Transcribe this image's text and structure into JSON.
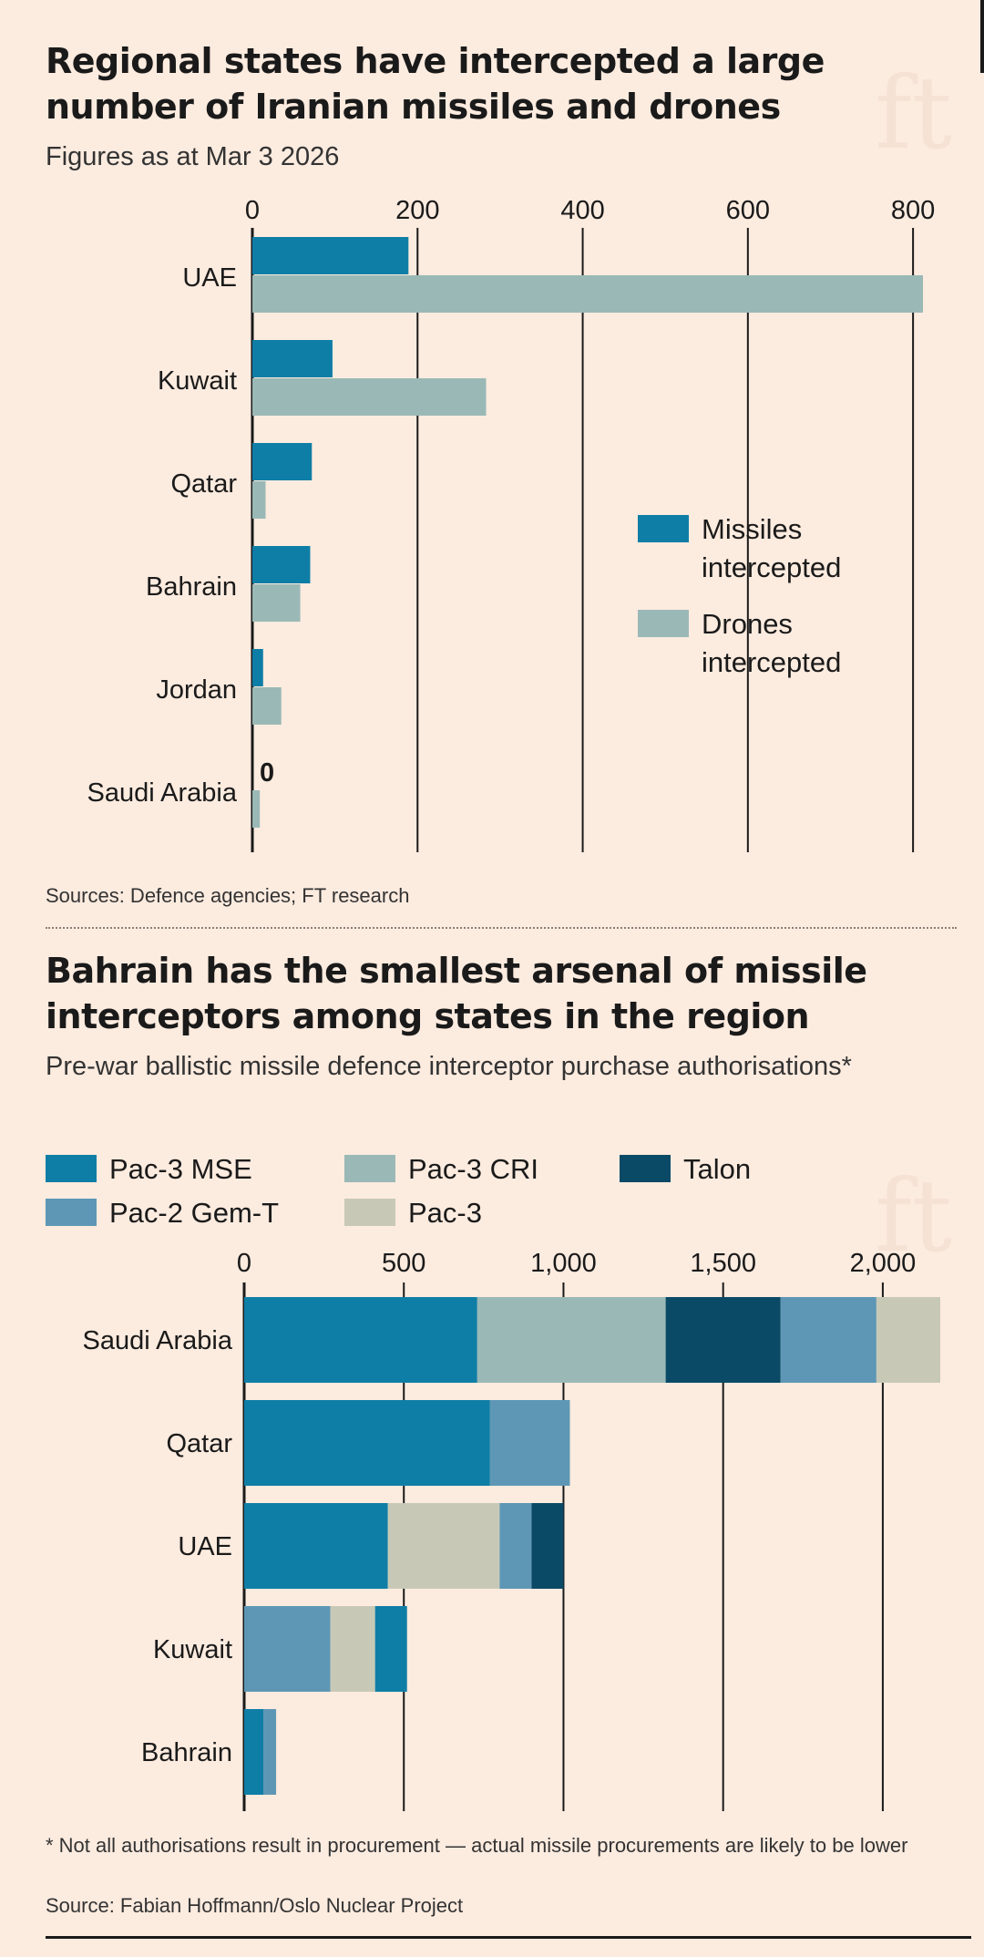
{
  "chart_data": [
    {
      "type": "bar",
      "orientation": "horizontal",
      "title": "Regional states have intercepted a large number of Iranian missiles and drones",
      "subtitle": "Figures as at Mar 3 2026",
      "categories": [
        "UAE",
        "Kuwait",
        "Qatar",
        "Bahrain",
        "Jordan",
        "Saudi Arabia"
      ],
      "series": [
        {
          "name": "Missiles intercepted",
          "color": "#0f7ea6",
          "values": [
            189,
            97,
            72,
            70,
            13,
            0
          ]
        },
        {
          "name": "Drones intercepted",
          "color": "#9ab9b6",
          "values": [
            812,
            283,
            16,
            58,
            35,
            9
          ]
        }
      ],
      "xticks": [
        0,
        200,
        400,
        600,
        800
      ],
      "xlim": [
        0,
        812
      ],
      "annotations": [
        {
          "category": "Saudi Arabia",
          "series": "Missiles intercepted",
          "text": "0"
        }
      ],
      "legend": [
        "Missiles intercepted",
        "Drones intercepted"
      ],
      "source": "Sources: Defence agencies; FT research"
    },
    {
      "type": "bar",
      "orientation": "horizontal",
      "stacked": true,
      "title": "Bahrain has the smallest arsenal of missile interceptors among states in the region",
      "subtitle": "Pre-war ballistic missile defence interceptor purchase authorisations*",
      "categories": [
        "Saudi Arabia",
        "Qatar",
        "UAE",
        "Kuwait",
        "Bahrain"
      ],
      "series": [
        {
          "name": "Pac-3 MSE",
          "color": "#0f7ea6",
          "values": [
            730,
            770,
            450,
            100,
            60
          ]
        },
        {
          "name": "Pac-3 CRI",
          "color": "#9ab9b6",
          "values": [
            590,
            0,
            0,
            0,
            0
          ]
        },
        {
          "name": "Talon",
          "color": "#0a4a66",
          "values": [
            360,
            0,
            100,
            0,
            0
          ]
        },
        {
          "name": "Pac-2 Gem-T",
          "color": "#5e97b5",
          "values": [
            300,
            250,
            100,
            270,
            40
          ]
        },
        {
          "name": "Pac-3",
          "color": "#c7c9b6",
          "values": [
            200,
            0,
            350,
            140,
            0
          ]
        }
      ],
      "stack_order": [
        [
          "Pac-3 MSE",
          "Pac-3 CRI",
          "Talon",
          "Pac-2 Gem-T",
          "Pac-3"
        ],
        [
          "Pac-3 MSE",
          "Pac-2 Gem-T"
        ],
        [
          "Pac-3 MSE",
          "Pac-3",
          "Pac-2 Gem-T",
          "Talon"
        ],
        [
          "Pac-2 Gem-T",
          "Pac-3",
          "Pac-3 MSE"
        ],
        [
          "Pac-3 MSE",
          "Pac-2 Gem-T"
        ]
      ],
      "xticks": [
        0,
        500,
        1000,
        1500,
        2000
      ],
      "xtick_labels": [
        "0",
        "500",
        "1,000",
        "1,500",
        "2,000"
      ],
      "xlim": [
        0,
        2180
      ],
      "legend": [
        "Pac-3 MSE",
        "Pac-3 CRI",
        "Talon",
        "Pac-2 Gem-T",
        "Pac-3"
      ],
      "footnote": "* Not all authorisations result in procurement — actual missile procurements are likely to be lower",
      "source": "Source: Fabian Hoffmann/Oslo Nuclear Project"
    }
  ],
  "watermark": "ft"
}
